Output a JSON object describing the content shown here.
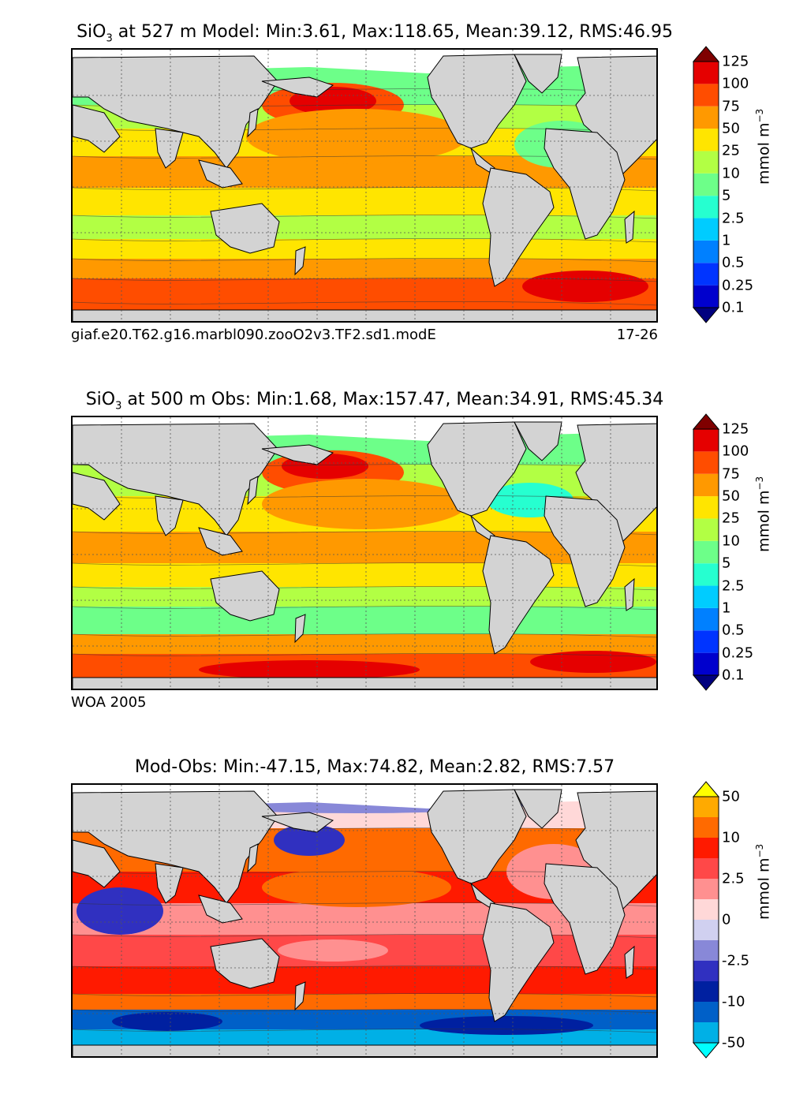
{
  "panels": [
    {
      "id": "model",
      "title_prefix": "SiO",
      "title_sub": "3",
      "title_rest": " at 527 m Model: Min:3.61, Max:118.65, Mean:39.12, RMS:46.95",
      "note_left": "giaf.e20.T62.g16.marbl090.zooO2v3.TF2.sd1.modE",
      "note_right": "17-26",
      "colorbar": {
        "levels": [
          "0.1",
          "0.25",
          "0.5",
          "1",
          "2.5",
          "5",
          "10",
          "25",
          "50",
          "75",
          "100",
          "125"
        ],
        "colors": [
          "#00007f",
          "#0000cd",
          "#0034ff",
          "#0080ff",
          "#00ccff",
          "#26ffd0",
          "#6dff89",
          "#b2ff44",
          "#ffe500",
          "#ff9900",
          "#ff4d00",
          "#e50000",
          "#7f0000"
        ],
        "unit_main": "mmol m",
        "unit_sup": "−3"
      }
    },
    {
      "id": "obs",
      "title_prefix": "SiO",
      "title_sub": "3",
      "title_rest": " at 500 m Obs: Min:1.68, Max:157.47, Mean:34.91, RMS:45.34",
      "note_left": "WOA 2005",
      "note_right": "",
      "colorbar": {
        "levels": [
          "0.1",
          "0.25",
          "0.5",
          "1",
          "2.5",
          "5",
          "10",
          "25",
          "50",
          "75",
          "100",
          "125"
        ],
        "colors": [
          "#00007f",
          "#0000cd",
          "#0034ff",
          "#0080ff",
          "#00ccff",
          "#26ffd0",
          "#6dff89",
          "#b2ff44",
          "#ffe500",
          "#ff9900",
          "#ff4d00",
          "#e50000",
          "#7f0000"
        ],
        "unit_main": "mmol m",
        "unit_sup": "−3"
      }
    },
    {
      "id": "diff",
      "title_prefix": "Mod-Obs: Min:-47.15, Max:74.82, Mean:2.82, RMS:7.57",
      "title_sub": "",
      "title_rest": "",
      "note_left": "",
      "note_right": "",
      "colorbar": {
        "levels": [
          "-50",
          "",
          "-10",
          "",
          "-2.5",
          "",
          "0",
          "",
          "2.5",
          "",
          "10",
          "",
          "50"
        ],
        "colors": [
          "#00ffff",
          "#00b0e6",
          "#0060c8",
          "#0020a0",
          "#3030c0",
          "#8888d8",
          "#d0d0f0",
          "#ffd8d8",
          "#ff9090",
          "#ff4848",
          "#ff1a00",
          "#ff6a00",
          "#ffaa00",
          "#ffff00"
        ],
        "unit_main": "mmol m",
        "unit_sup": "−3"
      }
    }
  ]
}
